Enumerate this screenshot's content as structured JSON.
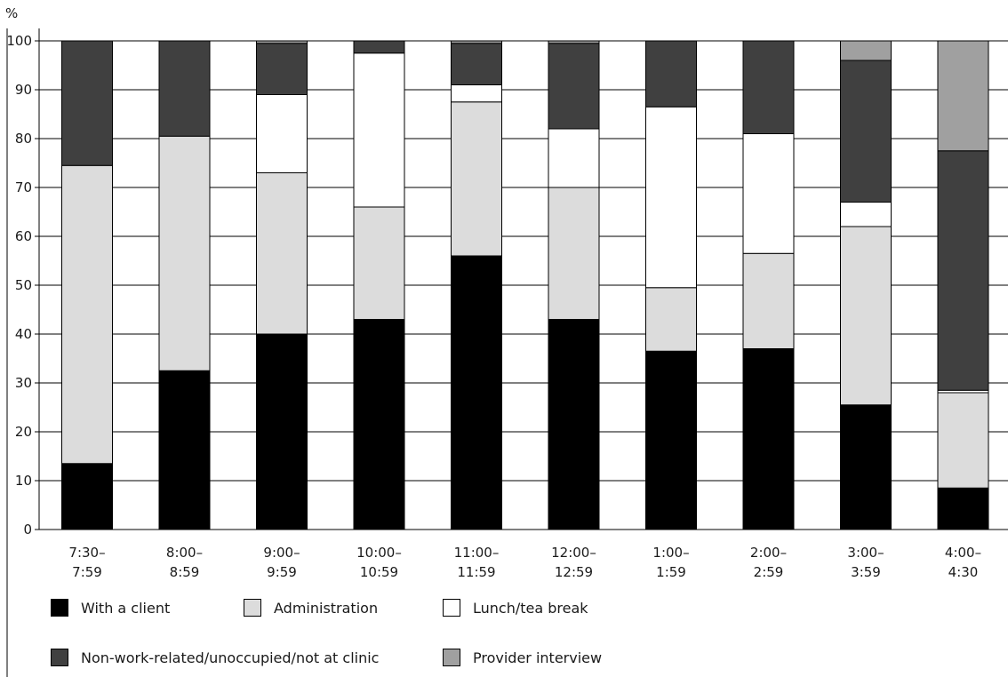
{
  "chart_data": {
    "type": "bar",
    "stacked": true,
    "title": "",
    "xlabel": "",
    "ylabel": "%",
    "ylim": [
      0,
      100
    ],
    "yticks": [
      0,
      10,
      20,
      30,
      40,
      50,
      60,
      70,
      80,
      90,
      100
    ],
    "grid": "horizontal",
    "legend_position": "bottom",
    "categories": [
      [
        "7:30–",
        "7:59"
      ],
      [
        "8:00–",
        "8:59"
      ],
      [
        "9:00–",
        "9:59"
      ],
      [
        "10:00–",
        "10:59"
      ],
      [
        "11:00–",
        "11:59"
      ],
      [
        "12:00–",
        "12:59"
      ],
      [
        "1:00–",
        "1:59"
      ],
      [
        "2:00–",
        "2:59"
      ],
      [
        "3:00–",
        "3:59"
      ],
      [
        "4:00–",
        "4:30"
      ]
    ],
    "series": [
      {
        "name": "With a client",
        "color": "#000000",
        "values": [
          13.5,
          32.5,
          40.0,
          43.0,
          56.0,
          43.0,
          36.5,
          37.0,
          25.5,
          8.5
        ]
      },
      {
        "name": "Administration",
        "color": "#dcdcdc",
        "values": [
          61.0,
          48.0,
          33.0,
          23.0,
          31.5,
          27.0,
          13.0,
          19.5,
          36.5,
          19.5
        ]
      },
      {
        "name": "Lunch/tea break",
        "color": "#ffffff",
        "values": [
          0.0,
          0.0,
          16.0,
          31.5,
          3.5,
          12.0,
          37.0,
          24.5,
          5.0,
          0.5
        ]
      },
      {
        "name": "Non-work-related/unoccupied/not at clinic",
        "color": "#404040",
        "values": [
          25.5,
          19.5,
          10.5,
          2.5,
          8.5,
          17.5,
          13.5,
          19.0,
          29.0,
          49.0
        ]
      },
      {
        "name": "Provider interview",
        "color": "#a0a0a0",
        "values": [
          0.0,
          0.0,
          0.5,
          0.0,
          0.5,
          0.5,
          0.0,
          0.0,
          4.0,
          22.5
        ]
      }
    ]
  }
}
